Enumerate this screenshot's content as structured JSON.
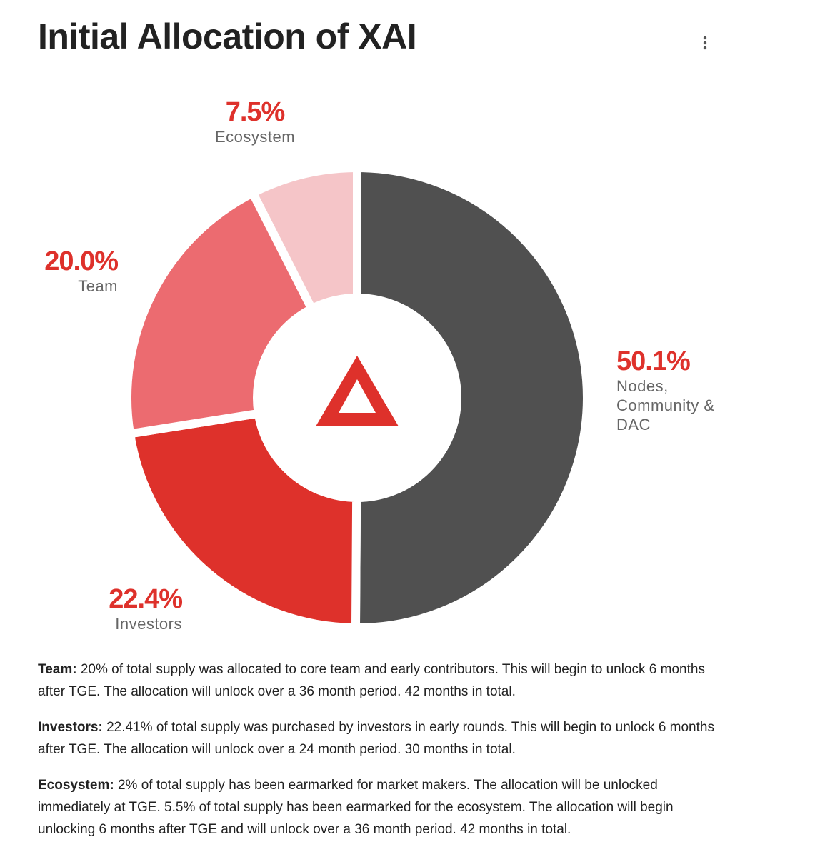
{
  "chart_data": {
    "type": "pie",
    "title": "Initial Allocation of XAI",
    "categories": [
      "Nodes, Community & DAC",
      "Investors",
      "Team",
      "Ecosystem"
    ],
    "values": [
      50.1,
      22.4,
      20.0,
      7.5
    ],
    "value_labels": [
      "50.1%",
      "22.4%",
      "20.0%",
      "7.5%"
    ],
    "colors": [
      "#505050",
      "#de312b",
      "#ec6b70",
      "#f5c5c8"
    ]
  },
  "notes": [
    {
      "label": "Team:",
      "text": "20% of total supply was allocated to core team and early contributors. This will begin to unlock 6 months after TGE. The allocation will unlock over a 36 month period. 42 months in total."
    },
    {
      "label": "Investors:",
      "text": "22.41% of total supply was purchased by investors in early rounds. This will begin to unlock 6 months after TGE. The allocation will unlock over a 24 month period. 30 months in total."
    },
    {
      "label": "Ecosystem:",
      "text": "2% of total supply has been earmarked for market makers. The allocation will be unlocked immediately at TGE. 5.5% of total supply has been earmarked for the ecosystem. The allocation will begin unlocking 6 months after TGE and will unlock over a 36 month period. 42 months in total."
    }
  ]
}
